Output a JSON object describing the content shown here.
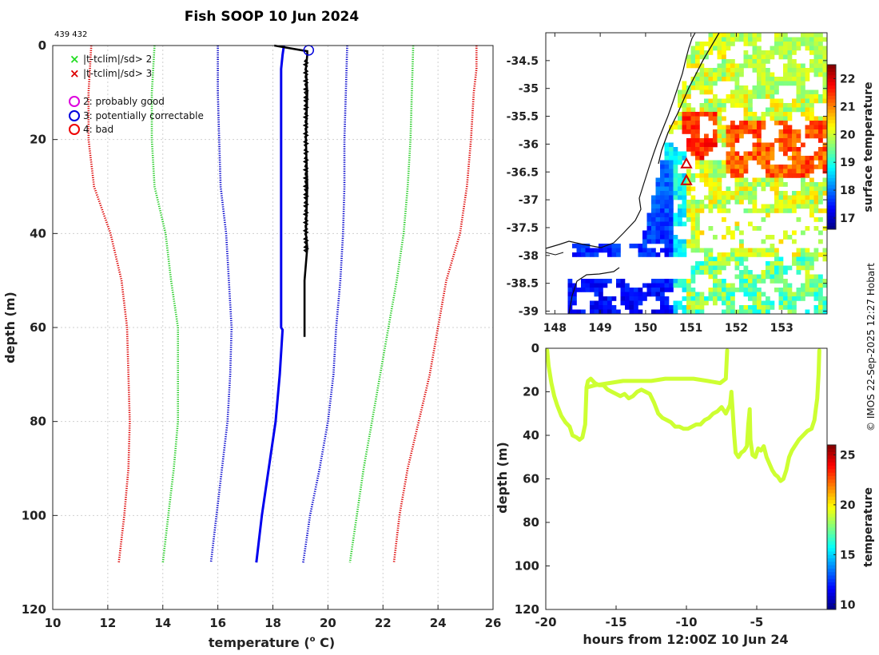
{
  "chart_data": [
    {
      "type": "line",
      "name": "temperature-profile",
      "title": "Fish SOOP 10 Jun 2024",
      "id_text": "439 432",
      "xlabel": "temperature (",
      "xlabel_sup": "o",
      "xlabel_tail": " C)",
      "ylabel": "depth (m)",
      "xlim": [
        10,
        26
      ],
      "ylim": [
        0,
        120
      ],
      "xticks": [
        "10",
        "12",
        "14",
        "16",
        "18",
        "20",
        "22",
        "24",
        "26"
      ],
      "yticks": [
        "0",
        "20",
        "40",
        "60",
        "80",
        "100",
        "120"
      ],
      "legend": {
        "markers": [
          {
            "symbol": "x",
            "color": "#22dd22",
            "label": "|t-tclim|/sd> 2"
          },
          {
            "symbol": "x",
            "color": "#dd0000",
            "label": "|t-tclim|/sd> 3"
          }
        ],
        "flags": [
          {
            "symbol": "o",
            "color": "#dd00dd",
            "label": "2: probably good"
          },
          {
            "symbol": "o",
            "color": "#0000dd",
            "label": "3: potentially correctable"
          },
          {
            "symbol": "o",
            "color": "#ee0000",
            "label": "4: bad"
          }
        ]
      },
      "series": [
        {
          "name": "clim -3sd",
          "color": "#dd0000",
          "style": "dotted",
          "depth": [
            0,
            10,
            20,
            30,
            40,
            50,
            60,
            70,
            80,
            90,
            100,
            110
          ],
          "temp": [
            11.4,
            11.3,
            11.3,
            11.5,
            12.1,
            12.5,
            12.7,
            12.75,
            12.8,
            12.75,
            12.6,
            12.4
          ]
        },
        {
          "name": "clim -2sd",
          "color": "#22cc22",
          "style": "dotted",
          "depth": [
            0,
            10,
            20,
            30,
            40,
            50,
            60,
            70,
            80,
            90,
            100,
            110
          ],
          "temp": [
            13.7,
            13.6,
            13.6,
            13.7,
            14.1,
            14.3,
            14.55,
            14.55,
            14.55,
            14.4,
            14.2,
            14.0
          ]
        },
        {
          "name": "clim -1sd",
          "color": "#0000cc",
          "style": "dotted",
          "depth": [
            0,
            10,
            20,
            30,
            40,
            50,
            60,
            70,
            80,
            90,
            100,
            110
          ],
          "temp": [
            16.0,
            16.0,
            16.05,
            16.1,
            16.3,
            16.4,
            16.5,
            16.45,
            16.35,
            16.15,
            15.95,
            15.75
          ]
        },
        {
          "name": "clim +1sd",
          "color": "#0000cc",
          "style": "dotted",
          "depth": [
            0,
            10,
            20,
            30,
            40,
            50,
            60,
            70,
            80,
            90,
            100,
            110
          ],
          "temp": [
            20.7,
            20.65,
            20.6,
            20.6,
            20.55,
            20.45,
            20.3,
            20.2,
            20.0,
            19.7,
            19.35,
            19.1
          ]
        },
        {
          "name": "clim +2sd",
          "color": "#22cc22",
          "style": "dotted",
          "depth": [
            0,
            10,
            20,
            30,
            40,
            50,
            60,
            70,
            80,
            90,
            100,
            110
          ],
          "temp": [
            23.1,
            23.05,
            23.0,
            22.9,
            22.75,
            22.5,
            22.2,
            21.9,
            21.6,
            21.3,
            21.05,
            20.8
          ]
        },
        {
          "name": "clim +3sd",
          "color": "#dd0000",
          "style": "dotted",
          "depth": [
            0,
            5,
            10,
            20,
            30,
            40,
            50,
            60,
            70,
            80,
            90,
            100,
            110
          ],
          "temp": [
            25.4,
            25.4,
            25.3,
            25.2,
            25.05,
            24.8,
            24.3,
            24.0,
            23.7,
            23.3,
            22.9,
            22.6,
            22.4
          ]
        },
        {
          "name": "climatology mean",
          "color": "#0000ee",
          "style": "solid",
          "depth": [
            0,
            2,
            5,
            20,
            40,
            60,
            60.5,
            70,
            80,
            90,
            100,
            110
          ],
          "temp": [
            18.4,
            18.35,
            18.3,
            18.3,
            18.3,
            18.3,
            18.35,
            18.25,
            18.1,
            17.85,
            17.6,
            17.4
          ]
        },
        {
          "name": "observed profile",
          "color": "#000000",
          "style": "solid",
          "depth": [
            0,
            1.2,
            2,
            5,
            10,
            20,
            30,
            40,
            43,
            50,
            60,
            62
          ],
          "temp": [
            18.05,
            19.25,
            19.25,
            19.2,
            19.25,
            19.2,
            19.25,
            19.2,
            19.25,
            19.15,
            19.15,
            19.15
          ]
        }
      ],
      "flag_points": [
        {
          "temp": 19.3,
          "depth": 1.0,
          "color": "#0000dd"
        }
      ]
    },
    {
      "type": "heatmap",
      "name": "surface-temperature-map",
      "xlim": [
        147.8,
        154.0
      ],
      "ylim": [
        -39.05,
        -34.0
      ],
      "xticks": [
        148,
        149,
        150,
        151,
        152,
        153
      ],
      "yticks": [
        "-34.5",
        "-35",
        "-35.5",
        "-36",
        "-36.5",
        "-37",
        "-37.5",
        "-38",
        "-38.5",
        "-39"
      ],
      "colorbar": {
        "label": "surface temperature",
        "min": 16.6,
        "max": 22.5,
        "ticks": [
          "17",
          "18",
          "19",
          "20",
          "21",
          "22"
        ]
      },
      "markers": [
        {
          "lon": 150.9,
          "lat": -36.35
        },
        {
          "lon": 150.9,
          "lat": -36.65
        }
      ]
    },
    {
      "type": "scatter",
      "name": "track-depth-time",
      "xlabel": "hours from 12:00Z 10 Jun 24",
      "ylabel": "depth (m)",
      "xlim": [
        -20,
        0
      ],
      "ylim": [
        0,
        120
      ],
      "xticks": [
        "-20",
        "-15",
        "-10",
        "-5"
      ],
      "yticks": [
        "0",
        "20",
        "40",
        "60",
        "80",
        "100",
        "120"
      ],
      "colorbar": {
        "label": "temperature",
        "min": 9.5,
        "max": 26,
        "ticks": [
          "10",
          "15",
          "20",
          "25"
        ]
      },
      "point_temperature": 19.0,
      "points": [
        [
          -19.9,
          1
        ],
        [
          -19.8,
          8
        ],
        [
          -19.6,
          16
        ],
        [
          -19.4,
          22
        ],
        [
          -19.2,
          26
        ],
        [
          -18.9,
          31
        ],
        [
          -18.6,
          34
        ],
        [
          -18.3,
          36
        ],
        [
          -18.1,
          40
        ],
        [
          -17.8,
          41
        ],
        [
          -17.6,
          42
        ],
        [
          -17.4,
          41
        ],
        [
          -17.2,
          35
        ],
        [
          -17.1,
          18
        ],
        [
          -17.0,
          15
        ],
        [
          -16.8,
          14
        ],
        [
          -16.5,
          16
        ],
        [
          -16.2,
          17
        ],
        [
          -15.9,
          17
        ],
        [
          -15.6,
          19
        ],
        [
          -15.3,
          20
        ],
        [
          -15.0,
          21
        ],
        [
          -14.7,
          22
        ],
        [
          -14.4,
          21
        ],
        [
          -14.1,
          23
        ],
        [
          -13.8,
          22
        ],
        [
          -13.5,
          20
        ],
        [
          -13.2,
          19
        ],
        [
          -12.9,
          20
        ],
        [
          -12.6,
          21
        ],
        [
          -12.3,
          25
        ],
        [
          -12.0,
          30
        ],
        [
          -11.7,
          32
        ],
        [
          -11.4,
          33
        ],
        [
          -11.1,
          34
        ],
        [
          -10.8,
          36
        ],
        [
          -10.5,
          36
        ],
        [
          -10.2,
          37
        ],
        [
          -9.9,
          37
        ],
        [
          -9.6,
          36
        ],
        [
          -9.3,
          35
        ],
        [
          -9.0,
          35
        ],
        [
          -8.7,
          33
        ],
        [
          -8.4,
          32
        ],
        [
          -8.1,
          30
        ],
        [
          -7.8,
          29
        ],
        [
          -7.5,
          27
        ],
        [
          -7.2,
          30
        ],
        [
          -6.9,
          26
        ],
        [
          -6.8,
          20
        ],
        [
          -6.7,
          30
        ],
        [
          -6.6,
          40
        ],
        [
          -6.5,
          48
        ],
        [
          -6.3,
          50
        ],
        [
          -6.1,
          48
        ],
        [
          -5.9,
          47
        ],
        [
          -5.7,
          45
        ],
        [
          -5.6,
          35
        ],
        [
          -5.5,
          28
        ],
        [
          -5.45,
          42
        ],
        [
          -5.3,
          49
        ],
        [
          -5.1,
          50
        ],
        [
          -4.9,
          46
        ],
        [
          -4.7,
          47
        ],
        [
          -4.5,
          45
        ],
        [
          -4.3,
          50
        ],
        [
          -4.1,
          53
        ],
        [
          -3.9,
          56
        ],
        [
          -3.7,
          58
        ],
        [
          -3.5,
          59
        ],
        [
          -3.3,
          61
        ],
        [
          -3.1,
          60
        ],
        [
          -2.9,
          56
        ],
        [
          -2.7,
          50
        ],
        [
          -2.5,
          47
        ],
        [
          -2.3,
          45
        ],
        [
          -2.0,
          42
        ],
        [
          -1.7,
          40
        ],
        [
          -1.4,
          38
        ],
        [
          -1.1,
          37
        ],
        [
          -0.9,
          33
        ],
        [
          -0.8,
          28
        ],
        [
          -0.7,
          23
        ],
        [
          -0.6,
          12
        ],
        [
          -0.55,
          1
        ]
      ],
      "segment2": [
        [
          -17.1,
          18
        ],
        [
          -16.5,
          17
        ],
        [
          -15.5,
          16
        ],
        [
          -14.5,
          15
        ],
        [
          -13.5,
          15
        ],
        [
          -12.5,
          15
        ],
        [
          -11.5,
          14
        ],
        [
          -10.5,
          14
        ],
        [
          -9.5,
          14
        ],
        [
          -8.5,
          15
        ],
        [
          -7.6,
          16
        ],
        [
          -7.2,
          14
        ],
        [
          -7.1,
          1
        ]
      ]
    }
  ],
  "watermark": "© IMOS 22-Sep-2025 12:27 Hobart"
}
